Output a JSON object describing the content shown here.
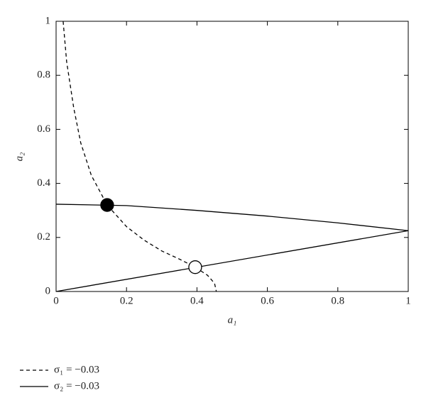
{
  "chart_data": {
    "type": "line",
    "x_label": "a₁",
    "y_label": "a₂",
    "xlim": [
      0,
      1
    ],
    "ylim": [
      0,
      1
    ],
    "xticks": [
      0,
      0.2,
      0.4,
      0.6,
      0.8,
      1
    ],
    "yticks": [
      0,
      0.2,
      0.4,
      0.6,
      0.8,
      1
    ],
    "series": [
      {
        "name": "σ₁ = −0.03",
        "color": "#000000",
        "dash": "dashed",
        "x": [
          0.02,
          0.03,
          0.05,
          0.07,
          0.1,
          0.145,
          0.2,
          0.25,
          0.3,
          0.35,
          0.395,
          0.43,
          0.45,
          0.455
        ],
        "values": [
          1.0,
          0.85,
          0.68,
          0.55,
          0.43,
          0.32,
          0.24,
          0.19,
          0.15,
          0.12,
          0.09,
          0.06,
          0.03,
          0.0
        ]
      },
      {
        "name": "σ₂ = −0.03",
        "color": "#000000",
        "dash": "solid",
        "x": [
          0,
          0.2,
          0.4,
          0.6,
          0.8,
          1,
          null,
          0,
          1
        ],
        "values": [
          0.323,
          0.318,
          0.3,
          0.279,
          0.254,
          0.225,
          null,
          0,
          0.225
        ]
      }
    ],
    "points": [
      {
        "x": 0.145,
        "y": 0.32,
        "filled": true
      },
      {
        "x": 0.395,
        "y": 0.09,
        "filled": false
      }
    ]
  }
}
